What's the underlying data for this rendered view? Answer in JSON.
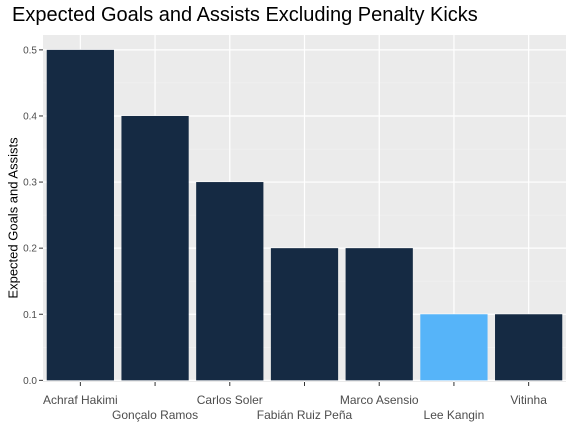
{
  "chart_data": {
    "type": "bar",
    "title": "Expected Goals and Assists Excluding Penalty Kicks",
    "xlabel": "",
    "ylabel": "Expected Goals and Assists",
    "categories": [
      "Achraf Hakimi",
      "Gonçalo Ramos",
      "Carlos Soler",
      "Fabián Ruiz Peña",
      "Marco Asensio",
      "Lee Kangin",
      "Vitinha"
    ],
    "values": [
      0.5,
      0.4,
      0.3,
      0.2,
      0.2,
      0.1,
      0.1
    ],
    "highlight_category": "Lee Kangin",
    "y_ticks": [
      "0.0",
      "0.1",
      "0.2",
      "0.3",
      "0.4",
      "0.5"
    ],
    "ylim": [
      -0.0025,
      0.5225
    ],
    "grid": true,
    "legend": "none",
    "colors": {
      "bar": "#152a43",
      "highlight": "#56b4f9",
      "panel_background": "#ebebeb",
      "grid_major": "#ffffff",
      "grid_minor": "#f2f2f2"
    }
  }
}
